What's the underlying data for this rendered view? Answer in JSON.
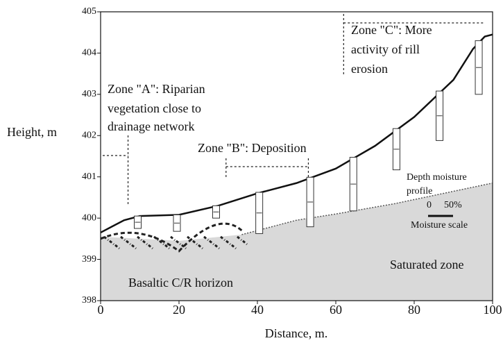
{
  "chart_data": {
    "type": "line",
    "x_label": "Distance, m.",
    "y_label": "Height, m",
    "xlim": [
      0,
      100
    ],
    "ylim": [
      398,
      405
    ],
    "xticks": [
      0,
      20,
      40,
      60,
      80,
      100
    ],
    "yticks": [
      398,
      399,
      400,
      401,
      402,
      403,
      404,
      405
    ],
    "series": [
      {
        "color": "#111111",
        "x": [
          0,
          3,
          6,
          10,
          20,
          30,
          40,
          50,
          60,
          70,
          80,
          90,
          95,
          98,
          100
        ],
        "values": [
          399.65,
          399.8,
          399.95,
          400.05,
          400.08,
          400.3,
          400.6,
          400.85,
          401.2,
          401.75,
          402.45,
          403.35,
          404.1,
          404.4,
          404.45
        ]
      },
      {
        "color": "#555555",
        "x": [
          36,
          50,
          60,
          75,
          90,
          100
        ],
        "values": [
          399.6,
          399.95,
          400.1,
          400.35,
          400.65,
          400.85
        ]
      }
    ],
    "annotations": [
      {
        "lines": [
          "Zone \"A\": Riparian",
          "vegetation close to",
          "drainage network"
        ]
      },
      {
        "lines": [
          "Zone \"B\": Deposition"
        ]
      },
      {
        "lines": [
          "Zone \"C\": More",
          "activity of rill",
          "erosion"
        ]
      },
      {
        "lines": [
          "Depth moisture",
          "profile"
        ]
      },
      {
        "lines": [
          "0",
          "50%"
        ]
      },
      {
        "lines": [
          "Moisture scale"
        ]
      },
      {
        "lines": [
          "Saturated zone"
        ]
      },
      {
        "lines": [
          "Basaltic C/R horizon"
        ]
      }
    ]
  }
}
